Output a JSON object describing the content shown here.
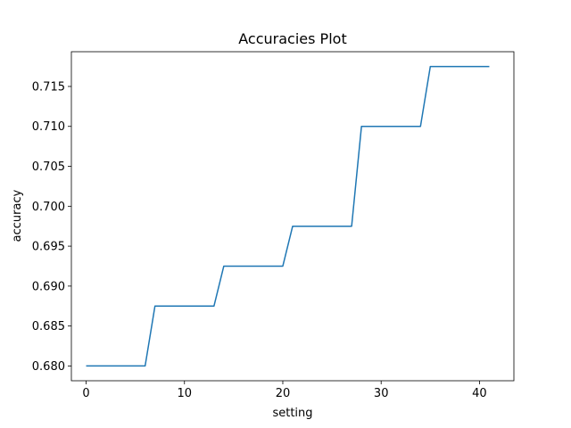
{
  "chart_data": {
    "type": "line",
    "title": "Accuracies Plot",
    "xlabel": "setting",
    "ylabel": "accuracy",
    "xlim": [
      -1.5,
      43.5
    ],
    "ylim": [
      0.67815,
      0.71935
    ],
    "xticks": [
      0,
      10,
      20,
      30,
      40
    ],
    "xtick_labels": [
      "0",
      "10",
      "20",
      "30",
      "40"
    ],
    "yticks": [
      0.68,
      0.685,
      0.69,
      0.695,
      0.7,
      0.705,
      0.71,
      0.715
    ],
    "ytick_labels": [
      "0.680",
      "0.685",
      "0.690",
      "0.695",
      "0.700",
      "0.705",
      "0.710",
      "0.715"
    ],
    "grid": false,
    "legend": "none",
    "series": [
      {
        "color": "#1f77b4",
        "x": [
          0,
          1,
          2,
          3,
          4,
          5,
          6,
          7,
          8,
          9,
          10,
          11,
          12,
          13,
          14,
          15,
          16,
          17,
          18,
          19,
          20,
          21,
          22,
          23,
          24,
          25,
          26,
          27,
          28,
          29,
          30,
          31,
          32,
          33,
          34,
          35,
          36,
          37,
          38,
          39,
          40,
          41
        ],
        "y": [
          0.68,
          0.68,
          0.68,
          0.68,
          0.68,
          0.68,
          0.68,
          0.6875,
          0.6875,
          0.6875,
          0.6875,
          0.6875,
          0.6875,
          0.6875,
          0.6925,
          0.6925,
          0.6925,
          0.6925,
          0.6925,
          0.6925,
          0.6925,
          0.6975,
          0.6975,
          0.6975,
          0.6975,
          0.6975,
          0.6975,
          0.6975,
          0.71,
          0.71,
          0.71,
          0.71,
          0.71,
          0.71,
          0.71,
          0.7175,
          0.7175,
          0.7175,
          0.7175,
          0.7175,
          0.7175,
          0.7175
        ]
      }
    ]
  }
}
